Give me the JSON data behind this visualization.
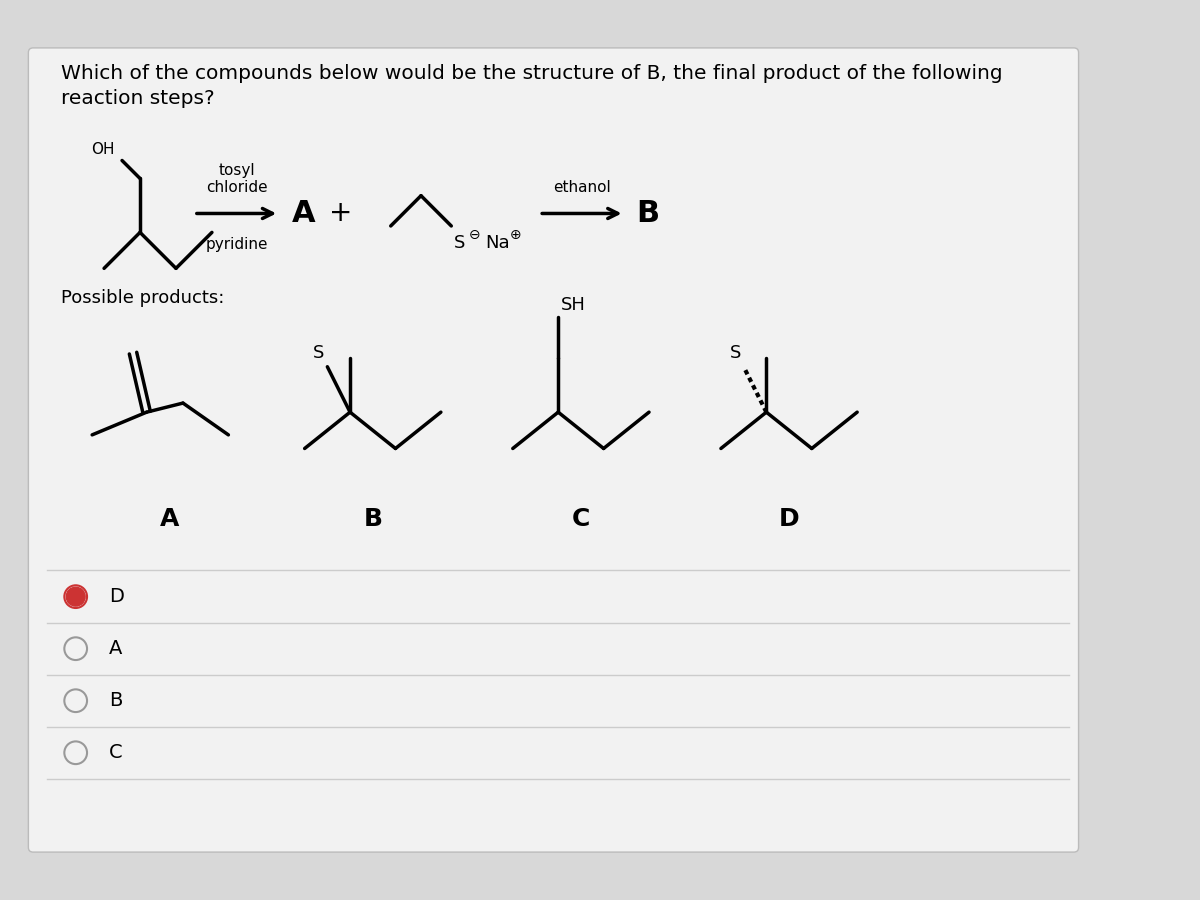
{
  "title_line1": "Which of the compounds below would be the structure of B, the final product of the following",
  "title_line2": "reaction steps?",
  "reagent1_line1": "tosyl",
  "reagent1_line2": "chloride",
  "reagent1_line3": "pyridine",
  "reagent2": "ethanol",
  "possible_products_text": "Possible products:",
  "answer_options": [
    "D",
    "A",
    "B",
    "C"
  ],
  "selected_option": "D",
  "bg_color": "#d8d8d8",
  "white_box_color": "#f2f2f2",
  "text_color": "#000000",
  "line_color": "#000000",
  "selected_fill": "#cc3333",
  "selected_ring": "#cc3333",
  "unselected_ring": "#999999",
  "title_fontsize": 14.5,
  "body_fontsize": 12,
  "label_fontsize": 16
}
